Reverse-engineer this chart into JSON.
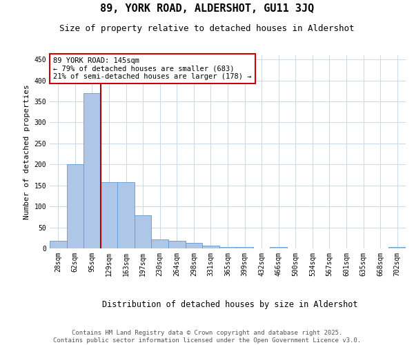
{
  "title": "89, YORK ROAD, ALDERSHOT, GU11 3JQ",
  "subtitle": "Size of property relative to detached houses in Aldershot",
  "xlabel": "Distribution of detached houses by size in Aldershot",
  "ylabel": "Number of detached properties",
  "categories": [
    "28sqm",
    "62sqm",
    "95sqm",
    "129sqm",
    "163sqm",
    "197sqm",
    "230sqm",
    "264sqm",
    "298sqm",
    "331sqm",
    "365sqm",
    "399sqm",
    "432sqm",
    "466sqm",
    "500sqm",
    "534sqm",
    "567sqm",
    "601sqm",
    "635sqm",
    "668sqm",
    "702sqm"
  ],
  "values": [
    18,
    201,
    370,
    158,
    158,
    79,
    21,
    18,
    13,
    7,
    4,
    3,
    0,
    4,
    0,
    0,
    0,
    0,
    0,
    0,
    4
  ],
  "bar_color": "#aec6e8",
  "bar_edge_color": "#5b9bd5",
  "background_color": "#ffffff",
  "grid_color": "#c8d8e8",
  "vline_color": "#aa0000",
  "annotation_text": "89 YORK ROAD: 145sqm\n← 79% of detached houses are smaller (683)\n21% of semi-detached houses are larger (178) →",
  "annotation_box_color": "#ffffff",
  "annotation_box_edge_color": "#cc0000",
  "ylim": [
    0,
    460
  ],
  "yticks": [
    0,
    50,
    100,
    150,
    200,
    250,
    300,
    350,
    400,
    450
  ],
  "footnote": "Contains HM Land Registry data © Crown copyright and database right 2025.\nContains public sector information licensed under the Open Government Licence v3.0.",
  "title_fontsize": 11,
  "subtitle_fontsize": 9,
  "xlabel_fontsize": 8.5,
  "ylabel_fontsize": 8,
  "tick_fontsize": 7,
  "annotation_fontsize": 7.5,
  "footnote_fontsize": 6.5
}
